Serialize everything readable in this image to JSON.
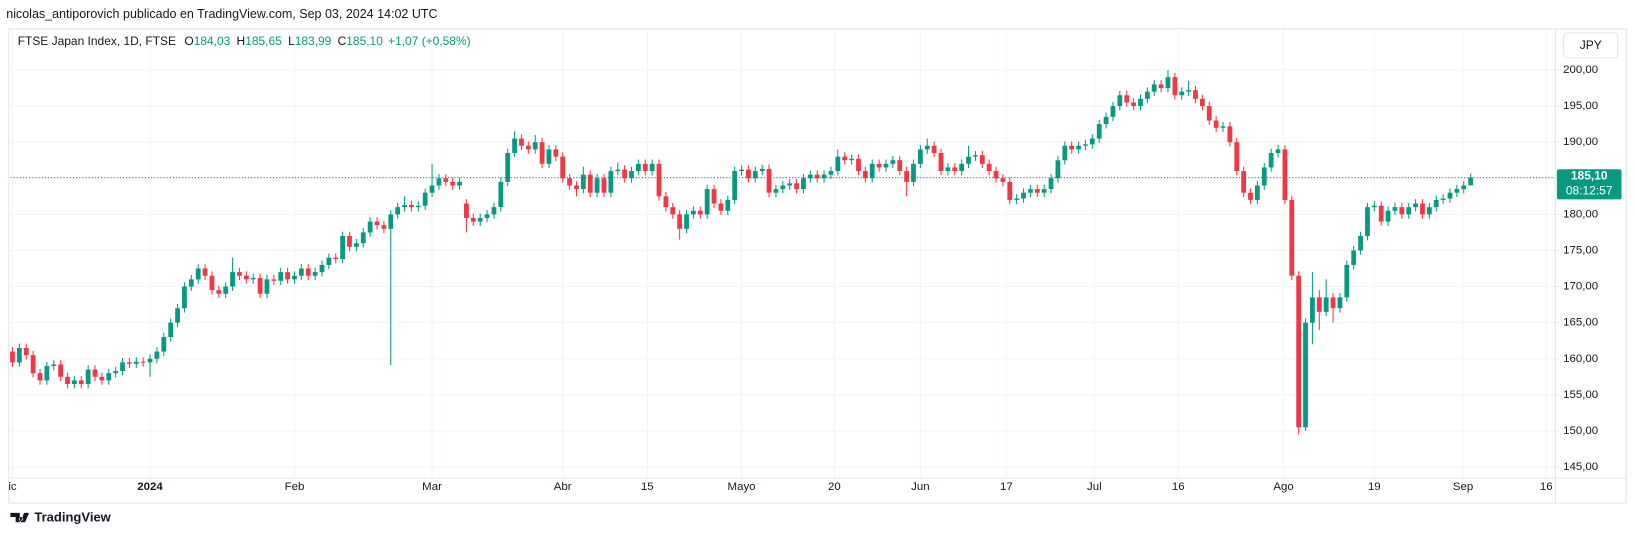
{
  "header": "nicolas_antiporovich publicado en TradingView.com, Sep 03, 2024 14:02 UTC",
  "footer": "TradingView",
  "currency": "JPY",
  "chart_data": {
    "type": "candlestick",
    "symbol": "FTSE Japan Index, 1D, FTSE",
    "legend": [
      {
        "key": "O",
        "value": "184,03"
      },
      {
        "key": "H",
        "value": "185,65"
      },
      {
        "key": "L",
        "value": "183,99"
      },
      {
        "key": "C",
        "value": "185,10"
      }
    ],
    "change": "+1,07 (+0,58%)",
    "last_price_label": "185,10",
    "countdown": "08:12:57",
    "up_color": "#089981",
    "down_color": "#f23645",
    "grid": true,
    "ylim": [
      143.56,
      205.63
    ],
    "yticks": [
      {
        "value": 145,
        "label": "145,00"
      },
      {
        "value": 150,
        "label": "150,00"
      },
      {
        "value": 155,
        "label": "155,00"
      },
      {
        "value": 160,
        "label": "160,00"
      },
      {
        "value": 165,
        "label": "165,00"
      },
      {
        "value": 170,
        "label": "170,00"
      },
      {
        "value": 175,
        "label": "175,00"
      },
      {
        "value": 180,
        "label": "180,00"
      },
      {
        "value": 185,
        "label": "185,00"
      },
      {
        "value": 190,
        "label": "190,00"
      },
      {
        "value": 195,
        "label": "195,00"
      },
      {
        "value": 200,
        "label": "200,00"
      }
    ],
    "xlim": [
      -0.3,
      224.24
    ],
    "xticks": [
      {
        "value": 0,
        "label": "ic"
      },
      {
        "value": 20,
        "label": "2024"
      },
      {
        "value": 41,
        "label": "Feb"
      },
      {
        "value": 61,
        "label": "Mar"
      },
      {
        "value": 80,
        "label": "Abr"
      },
      {
        "value": 92.3,
        "label": "15"
      },
      {
        "value": 106,
        "label": "Mayo"
      },
      {
        "value": 119.5,
        "label": "20"
      },
      {
        "value": 132,
        "label": "Jun"
      },
      {
        "value": 144.5,
        "label": "17"
      },
      {
        "value": 157.3,
        "label": "Jul"
      },
      {
        "value": 169.5,
        "label": "16"
      },
      {
        "value": 184.8,
        "label": "Ago"
      },
      {
        "value": 198,
        "label": "19"
      },
      {
        "value": 210.9,
        "label": "Sep"
      },
      {
        "value": 223,
        "label": "16"
      }
    ],
    "candles": [
      [
        161,
        161.6,
        158.9,
        159.5
      ],
      [
        159.5,
        162.1,
        158.9,
        161.5
      ],
      [
        161.5,
        162.1,
        159.9,
        160.5
      ],
      [
        160.5,
        161.1,
        157.4,
        158
      ],
      [
        158,
        158.6,
        156.4,
        157
      ],
      [
        157,
        159.6,
        156.4,
        159
      ],
      [
        159,
        159.8,
        158.4,
        159.2
      ],
      [
        159.2,
        159.8,
        156.9,
        157.5
      ],
      [
        157.5,
        158.1,
        155.9,
        156.5
      ],
      [
        156.5,
        157.6,
        155.9,
        157
      ],
      [
        157,
        157.6,
        155.9,
        156.5
      ],
      [
        156.5,
        159.1,
        155.9,
        158.5
      ],
      [
        158.5,
        159.1,
        156.9,
        157.5
      ],
      [
        157.5,
        158.1,
        156.4,
        157
      ],
      [
        157,
        158.6,
        156.4,
        158
      ],
      [
        158,
        158.9,
        157.4,
        158.3
      ],
      [
        158.3,
        160.1,
        157.7,
        159.5
      ],
      [
        159.5,
        160.1,
        158.7,
        159.3
      ],
      [
        159.3,
        160.2,
        158.7,
        159.6
      ],
      [
        159.6,
        160.2,
        158.9,
        159.5
      ],
      [
        159.5,
        160.6,
        157.5,
        160
      ],
      [
        160,
        161.6,
        159.4,
        161
      ],
      [
        161,
        163.6,
        160.4,
        163
      ],
      [
        163,
        165.6,
        162.4,
        165
      ],
      [
        165,
        167.6,
        164.4,
        167
      ],
      [
        167,
        170.6,
        166.4,
        170
      ],
      [
        170,
        171.6,
        169.4,
        171
      ],
      [
        171,
        173.1,
        170.4,
        172.5
      ],
      [
        172.5,
        173.1,
        170.9,
        171.5
      ],
      [
        171.5,
        172.1,
        168.9,
        169.5
      ],
      [
        169.5,
        170.1,
        168.4,
        169
      ],
      [
        169,
        170.6,
        168.4,
        170
      ],
      [
        170,
        174,
        169.4,
        172
      ],
      [
        172,
        172.6,
        170.9,
        171.5
      ],
      [
        171.5,
        172.1,
        170.4,
        171
      ],
      [
        171,
        171.8,
        170.4,
        171.2
      ],
      [
        171.2,
        171.8,
        168.4,
        169
      ],
      [
        169,
        171.6,
        168.4,
        171
      ],
      [
        171,
        171.6,
        170.2,
        170.8
      ],
      [
        170.8,
        172.6,
        170.2,
        172
      ],
      [
        172,
        172.6,
        170.4,
        171
      ],
      [
        171,
        172.1,
        170.4,
        171.5
      ],
      [
        171.5,
        173.1,
        170.9,
        172.5
      ],
      [
        172.5,
        173.1,
        170.9,
        171.5
      ],
      [
        171.5,
        172.6,
        170.9,
        172
      ],
      [
        172,
        173.6,
        171.4,
        173
      ],
      [
        173,
        174.6,
        172.4,
        174
      ],
      [
        174,
        174.6,
        173.2,
        173.8
      ],
      [
        173.8,
        177.6,
        173.2,
        177
      ],
      [
        177,
        177.6,
        174.9,
        175.5
      ],
      [
        175.5,
        176.6,
        174.9,
        176
      ],
      [
        176,
        178.1,
        175.4,
        177.5
      ],
      [
        177.5,
        179.6,
        176.9,
        179
      ],
      [
        179,
        179.6,
        177.9,
        178.5
      ],
      [
        178.5,
        179.1,
        177.4,
        178
      ],
      [
        178,
        180.6,
        159.1,
        180
      ],
      [
        180,
        181.6,
        179.4,
        181
      ],
      [
        181,
        182.5,
        180.4,
        181.3
      ],
      [
        181.3,
        181.9,
        180.4,
        181
      ],
      [
        181,
        181.8,
        180.4,
        181.2
      ],
      [
        181.2,
        183.6,
        180.6,
        183
      ],
      [
        183,
        187,
        182.4,
        184
      ],
      [
        184,
        185.6,
        183.4,
        185
      ],
      [
        185,
        185.6,
        183.9,
        184.5
      ],
      [
        184.5,
        185.1,
        183.4,
        184
      ],
      [
        184,
        185.1,
        183.4,
        184.5
      ],
      [
        181.5,
        182.1,
        177.5,
        179.5
      ],
      [
        179.5,
        180.1,
        178.4,
        179
      ],
      [
        179,
        180.1,
        178.4,
        179.5
      ],
      [
        179.5,
        180.6,
        178.9,
        180
      ],
      [
        180,
        181.6,
        179.4,
        181
      ],
      [
        181,
        185.1,
        180.4,
        184.5
      ],
      [
        184.5,
        189.1,
        183.9,
        188.5
      ],
      [
        188.5,
        191.5,
        187.9,
        190.5
      ],
      [
        190.5,
        191.1,
        188.9,
        189.5
      ],
      [
        189.5,
        190.1,
        188.4,
        189
      ],
      [
        189,
        191,
        188.4,
        190
      ],
      [
        190,
        190.6,
        186.4,
        187
      ],
      [
        187,
        189.6,
        186.4,
        189
      ],
      [
        189,
        189.6,
        187.4,
        188
      ],
      [
        188,
        188.6,
        184.4,
        185
      ],
      [
        185,
        185.6,
        183.4,
        184
      ],
      [
        184,
        184.6,
        182.5,
        183.5
      ],
      [
        183.5,
        186.6,
        182.9,
        185.5
      ],
      [
        185.5,
        186.1,
        182.4,
        183
      ],
      [
        183,
        185.6,
        182.4,
        185
      ],
      [
        185,
        185.6,
        182.4,
        183
      ],
      [
        183,
        186.6,
        182.4,
        186
      ],
      [
        186,
        187.2,
        185.4,
        186.2
      ],
      [
        186.2,
        186.8,
        184.4,
        185
      ],
      [
        185,
        186.6,
        184.4,
        186
      ],
      [
        186,
        187.6,
        185.4,
        187
      ],
      [
        187,
        187.6,
        185.4,
        186
      ],
      [
        186,
        187.6,
        185.4,
        187
      ],
      [
        187,
        187.6,
        181.9,
        182.5
      ],
      [
        182.5,
        183.1,
        180.4,
        181
      ],
      [
        181,
        181.6,
        179.4,
        180
      ],
      [
        180,
        180.6,
        176.5,
        178
      ],
      [
        178,
        180.6,
        177.4,
        180
      ],
      [
        180,
        181.1,
        179.4,
        180.5
      ],
      [
        180.5,
        181.1,
        179.4,
        180
      ],
      [
        180,
        184.1,
        179.4,
        183.5
      ],
      [
        183.5,
        184.1,
        180.9,
        181.5
      ],
      [
        181.5,
        182.1,
        179.9,
        180.5
      ],
      [
        180.5,
        182.6,
        179.9,
        182
      ],
      [
        182,
        186.6,
        181.4,
        186
      ],
      [
        186,
        186.8,
        185.4,
        186.2
      ],
      [
        186.2,
        186.8,
        184.4,
        185
      ],
      [
        185,
        186.6,
        184.4,
        186
      ],
      [
        186,
        186.9,
        185.4,
        186.3
      ],
      [
        186.3,
        186.9,
        182.4,
        183
      ],
      [
        183,
        184.1,
        182.4,
        183.5
      ],
      [
        183.5,
        184.6,
        182.9,
        184
      ],
      [
        184,
        184.9,
        183.4,
        184.3
      ],
      [
        184.3,
        184.9,
        182.9,
        183.5
      ],
      [
        183.5,
        185.6,
        182.9,
        185
      ],
      [
        185,
        186.1,
        184.4,
        185.5
      ],
      [
        185.5,
        186.1,
        184.4,
        185
      ],
      [
        185,
        186.1,
        184.4,
        185.5
      ],
      [
        185.5,
        186.6,
        184.9,
        186
      ],
      [
        186,
        189,
        185.4,
        188
      ],
      [
        188,
        188.6,
        186.9,
        187.5
      ],
      [
        187.5,
        188.3,
        186.9,
        187.7
      ],
      [
        187.7,
        188.3,
        185.4,
        186
      ],
      [
        186,
        186.6,
        184.4,
        185
      ],
      [
        185,
        187.6,
        184.4,
        187
      ],
      [
        187,
        187.6,
        185.9,
        186.5
      ],
      [
        186.5,
        187.6,
        185.9,
        187
      ],
      [
        187,
        188.1,
        186.4,
        187.5
      ],
      [
        187.5,
        188.1,
        185.4,
        186
      ],
      [
        186,
        186.6,
        182.5,
        184.5
      ],
      [
        184.5,
        187.6,
        183.9,
        187
      ],
      [
        187,
        189.6,
        186.4,
        189
      ],
      [
        189,
        190.5,
        188.4,
        189.5
      ],
      [
        189.5,
        190.1,
        187.9,
        188.5
      ],
      [
        188.5,
        189.1,
        185.4,
        186
      ],
      [
        186,
        187.1,
        185.4,
        186.5
      ],
      [
        186.5,
        187.1,
        185.4,
        186
      ],
      [
        186,
        187.6,
        185.4,
        187
      ],
      [
        187,
        189.5,
        186.4,
        188
      ],
      [
        188,
        188.8,
        187.4,
        188.2
      ],
      [
        188.2,
        188.8,
        186.4,
        187
      ],
      [
        187,
        187.6,
        185.4,
        186
      ],
      [
        186,
        186.6,
        184.4,
        185
      ],
      [
        185,
        185.6,
        183.9,
        184.5
      ],
      [
        184.5,
        185.1,
        181.4,
        182
      ],
      [
        182,
        182.8,
        181.4,
        182.2
      ],
      [
        182.2,
        183.6,
        181.6,
        183
      ],
      [
        183,
        184.1,
        182.4,
        183.5
      ],
      [
        183.5,
        184.1,
        182.4,
        183
      ],
      [
        183,
        184.1,
        182.4,
        183.5
      ],
      [
        183.5,
        185.6,
        182.9,
        185
      ],
      [
        185,
        188.1,
        184.4,
        187.5
      ],
      [
        187.5,
        190.1,
        186.9,
        189.5
      ],
      [
        189.5,
        190.1,
        188.4,
        189
      ],
      [
        189,
        190.1,
        188.4,
        189.5
      ],
      [
        189.5,
        190.3,
        188.9,
        189.7
      ],
      [
        189.7,
        191.1,
        189.1,
        190.5
      ],
      [
        190.5,
        193.1,
        189.9,
        192.5
      ],
      [
        192.5,
        194.1,
        191.9,
        193.5
      ],
      [
        193.5,
        195.6,
        192.9,
        195
      ],
      [
        195,
        197.1,
        194.4,
        196.5
      ],
      [
        196.5,
        197.1,
        194.9,
        195.5
      ],
      [
        195.5,
        196.1,
        194.4,
        195
      ],
      [
        195,
        196.6,
        194.4,
        196
      ],
      [
        196,
        197.6,
        195.4,
        197
      ],
      [
        197,
        198.6,
        196.4,
        198
      ],
      [
        198,
        198.6,
        196.9,
        197.5
      ],
      [
        197.5,
        200,
        196.9,
        199
      ],
      [
        199,
        199.6,
        195.9,
        196.5
      ],
      [
        196.5,
        197.6,
        195.9,
        197
      ],
      [
        197,
        198.5,
        196.4,
        197.2
      ],
      [
        197.2,
        197.8,
        195.4,
        196
      ],
      [
        196,
        196.6,
        194.4,
        195
      ],
      [
        195,
        195.6,
        192.4,
        193
      ],
      [
        193,
        193.6,
        191.4,
        192
      ],
      [
        192,
        192.8,
        191.4,
        192.2
      ],
      [
        192.2,
        192.8,
        189.4,
        190
      ],
      [
        190,
        190.6,
        185.4,
        186
      ],
      [
        186,
        186.6,
        182.4,
        183
      ],
      [
        183,
        183.6,
        181.4,
        182
      ],
      [
        182,
        184.6,
        181.4,
        184
      ],
      [
        184,
        187.1,
        183.4,
        186.5
      ],
      [
        186.5,
        189.1,
        185.9,
        188.5
      ],
      [
        188.5,
        189.6,
        187.9,
        189
      ],
      [
        189,
        189.6,
        181.4,
        182
      ],
      [
        182,
        182.6,
        170.9,
        171.5
      ],
      [
        171.5,
        172.1,
        149.5,
        150.5
      ],
      [
        150.5,
        165.6,
        150,
        165
      ],
      [
        165,
        172,
        162,
        168.5
      ],
      [
        168.5,
        169.5,
        164,
        166.5
      ],
      [
        166.5,
        171,
        165.9,
        168.5
      ],
      [
        168.5,
        169.1,
        165,
        167
      ],
      [
        167,
        169.1,
        166.4,
        168.5
      ],
      [
        168.5,
        173.6,
        167.9,
        173
      ],
      [
        173,
        175.6,
        172.4,
        175
      ],
      [
        175,
        177.6,
        174.4,
        177
      ],
      [
        177,
        181.6,
        176.4,
        181
      ],
      [
        181,
        181.8,
        180.4,
        181.2
      ],
      [
        181.2,
        181.8,
        178.4,
        179
      ],
      [
        179,
        181.1,
        178.4,
        180.5
      ],
      [
        180.5,
        181.6,
        179.9,
        181
      ],
      [
        181,
        181.6,
        179.4,
        180
      ],
      [
        180,
        181.6,
        179.4,
        181
      ],
      [
        181,
        182.1,
        180.4,
        181.5
      ],
      [
        181.5,
        182.1,
        179.4,
        180
      ],
      [
        180,
        181.6,
        179.4,
        181
      ],
      [
        181,
        182.6,
        180.4,
        182
      ],
      [
        182,
        182.8,
        181.4,
        182.2
      ],
      [
        182.2,
        183.6,
        181.6,
        183
      ],
      [
        183,
        184.1,
        182.4,
        183.5
      ],
      [
        183.5,
        184.6,
        182.9,
        184
      ],
      [
        184.03,
        185.65,
        183.99,
        185.1
      ]
    ]
  }
}
